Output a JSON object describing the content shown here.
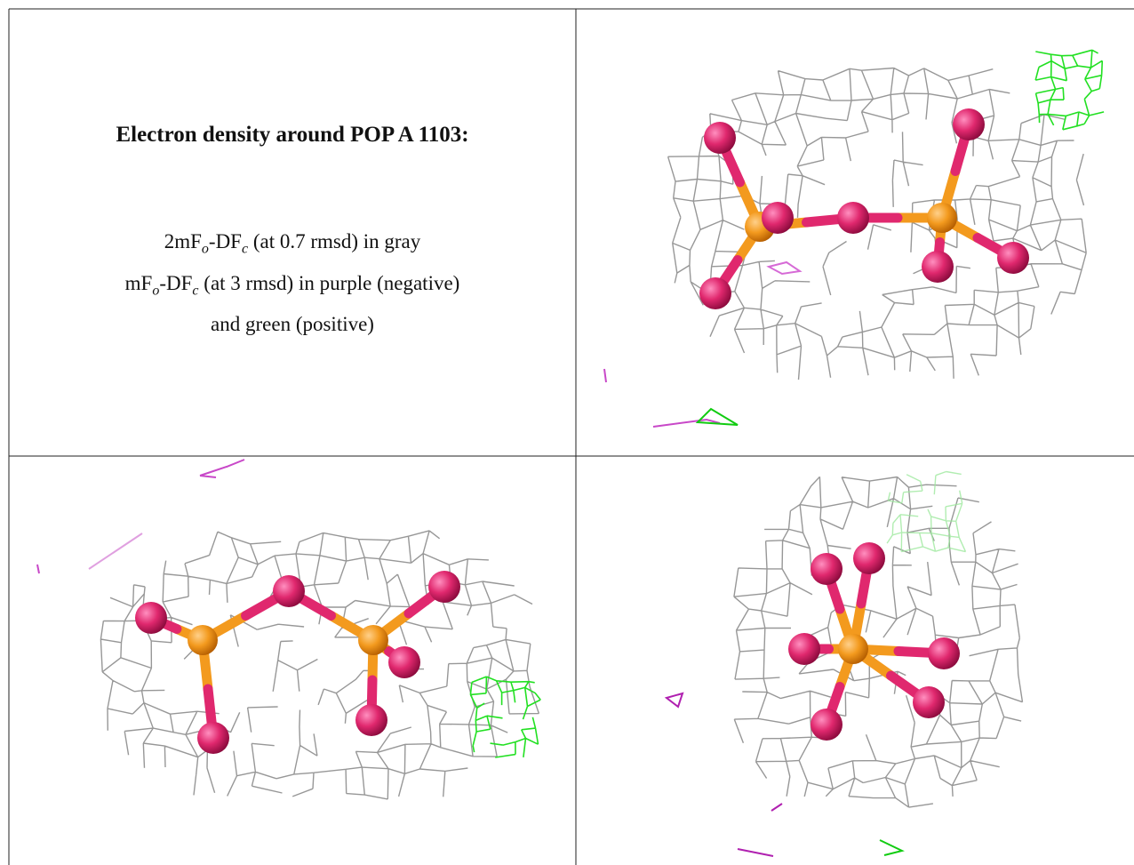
{
  "caption": {
    "title": "Electron density around POP A 1103:",
    "lines": [
      [
        "2mF",
        "o",
        "-DF",
        "c",
        " (at 0.7 rmsd) in gray"
      ],
      [
        "mF",
        "o",
        "-DF",
        "c",
        " (at 3 rmsd) in purple (negative)"
      ],
      [
        "and green (positive)"
      ]
    ]
  }
}
